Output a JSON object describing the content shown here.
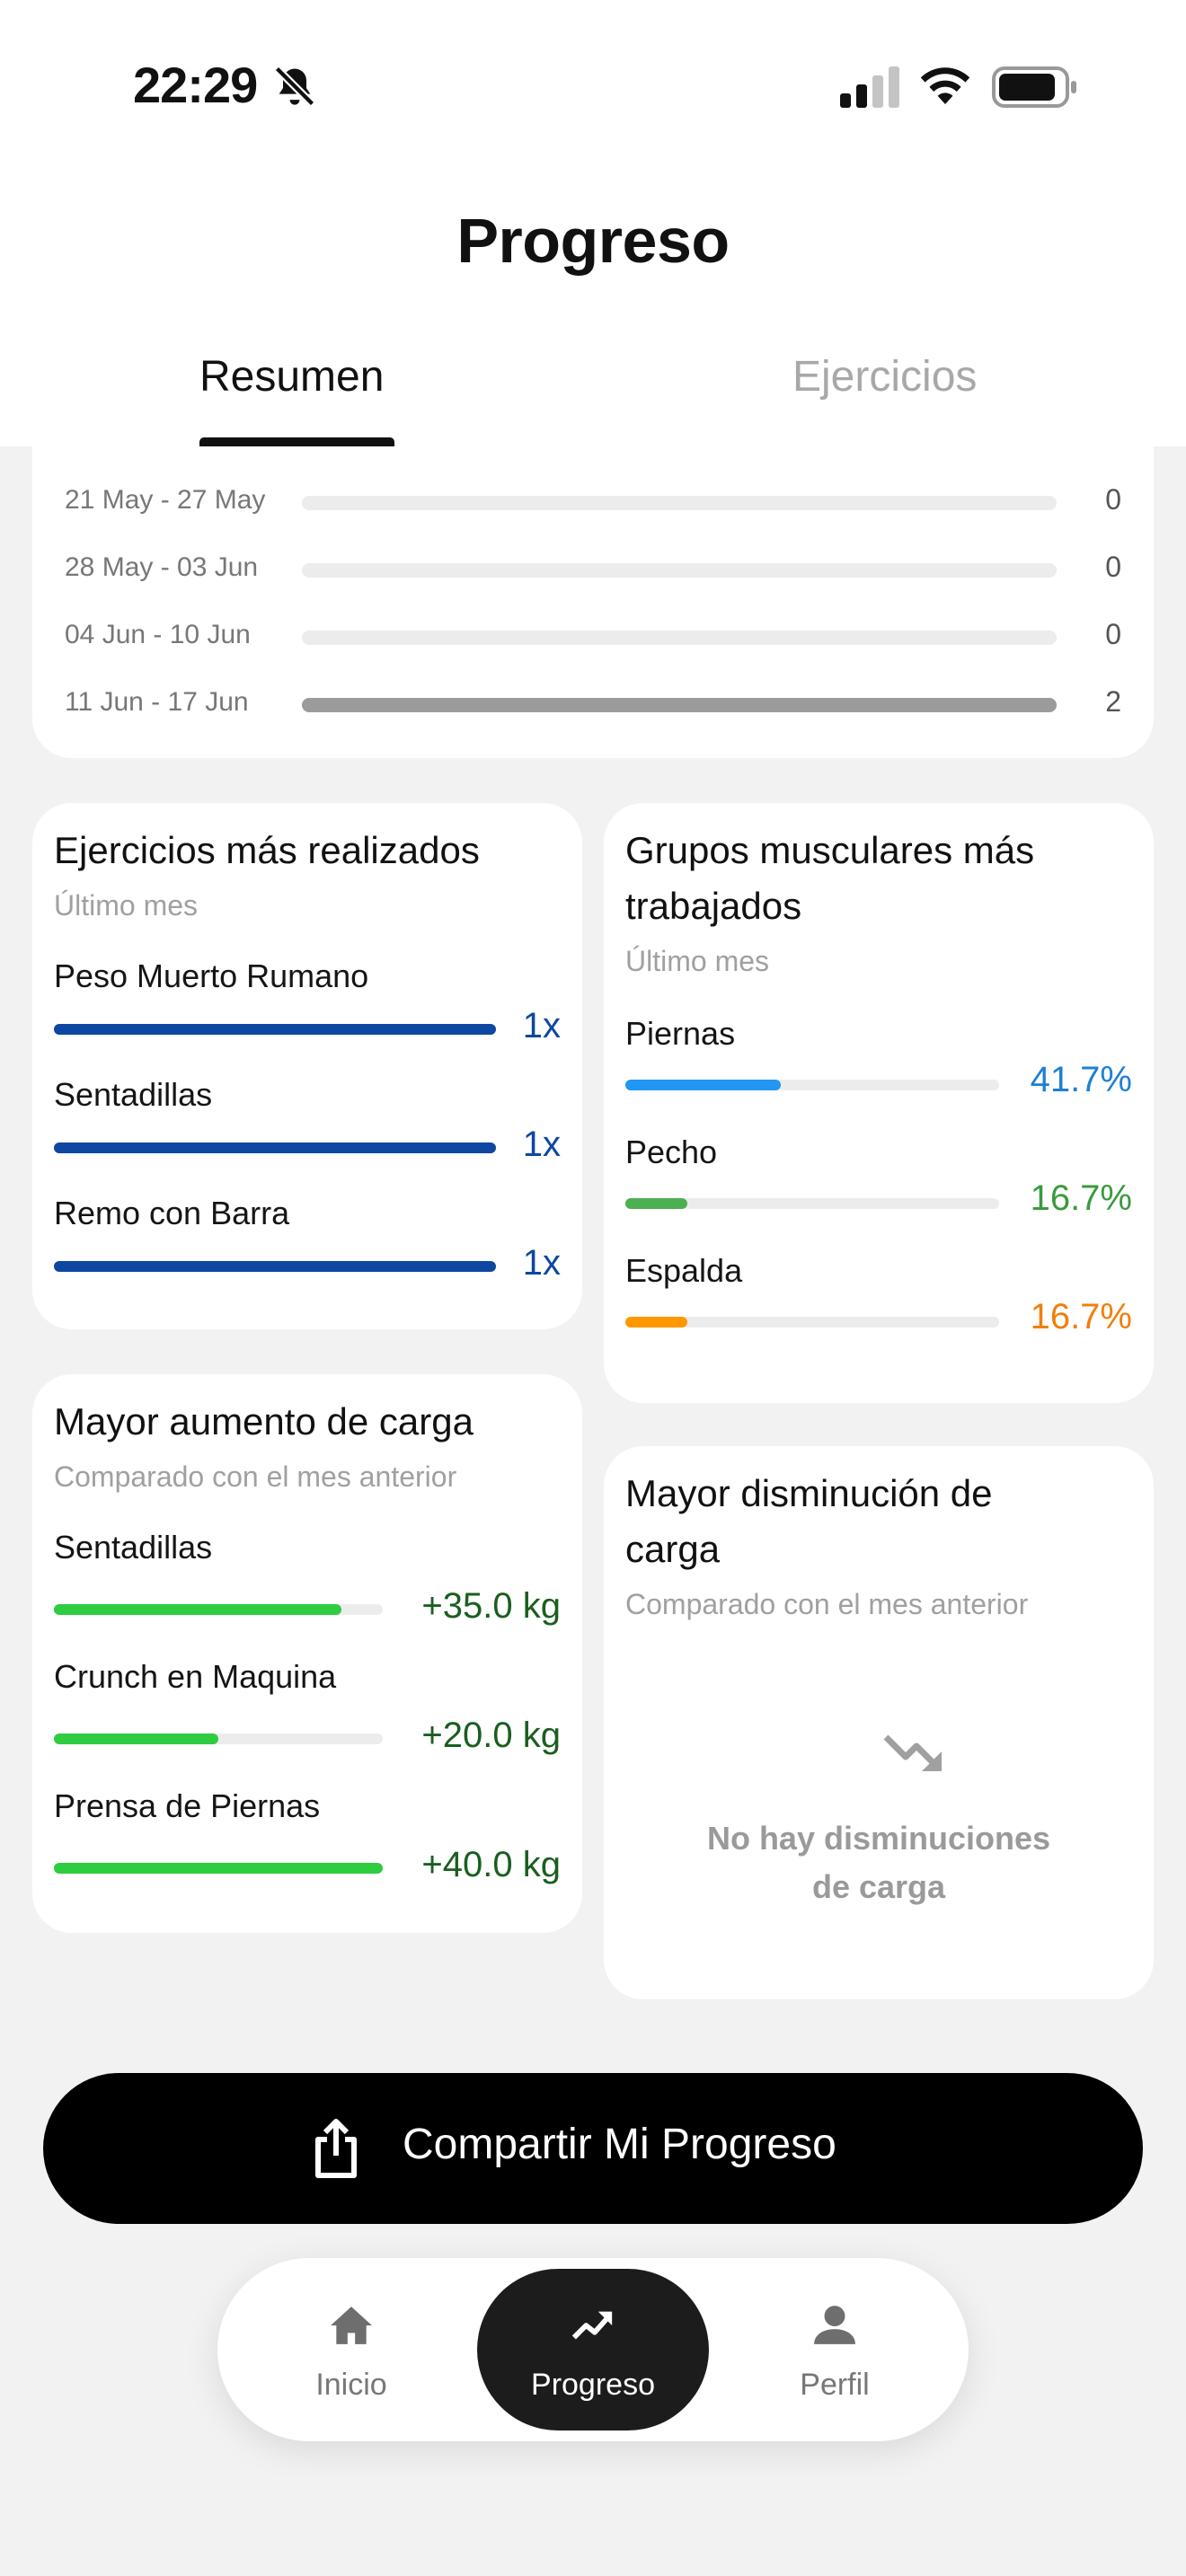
{
  "status_bar": {
    "time": "22:29"
  },
  "header": {
    "title": "Progreso",
    "tabs": [
      {
        "label": "Resumen",
        "active": true
      },
      {
        "label": "Ejercicios",
        "active": false
      }
    ]
  },
  "weekly_summary": {
    "rows": [
      {
        "label": "21 May - 27 May",
        "count": "0",
        "fraction": 0
      },
      {
        "label": "28 May - 03 Jun",
        "count": "0",
        "fraction": 0
      },
      {
        "label": "04 Jun - 10 Jun",
        "count": "0",
        "fraction": 0
      },
      {
        "label": "11 Jun - 17 Jun",
        "count": "2",
        "fraction": 1
      }
    ]
  },
  "top_exercises": {
    "title": "Ejercicios más realizados",
    "subtitle": "Último mes",
    "color": "#0d47a1",
    "items": [
      {
        "name": "Peso Muerto Rumano",
        "value": "1x",
        "fraction": 1
      },
      {
        "name": "Sentadillas",
        "value": "1x",
        "fraction": 1
      },
      {
        "name": "Remo con Barra",
        "value": "1x",
        "fraction": 1
      }
    ]
  },
  "muscle_groups": {
    "title_line1": "Grupos musculares más",
    "title_line2": "trabajados",
    "subtitle": "Último mes",
    "items": [
      {
        "name": "Piernas",
        "value": "41.7%",
        "fraction": 0.417,
        "color": "#2196f3",
        "text_color": "#1e7fd6"
      },
      {
        "name": "Pecho",
        "value": "16.7%",
        "fraction": 0.167,
        "color": "#4caf50",
        "text_color": "#3a9a3e"
      },
      {
        "name": "Espalda",
        "value": "16.7%",
        "fraction": 0.167,
        "color": "#ff9800",
        "text_color": "#f07f0c"
      }
    ]
  },
  "load_increase": {
    "title": "Mayor aumento de carga",
    "subtitle": "Comparado con el mes anterior",
    "color": "#2ecc40",
    "text_color": "#1b5e20",
    "items": [
      {
        "name": "Sentadillas",
        "value": "+35.0 kg",
        "fraction": 0.875
      },
      {
        "name": "Crunch en Maquina",
        "value": "+20.0 kg",
        "fraction": 0.5
      },
      {
        "name": "Prensa de Piernas",
        "value": "+40.0 kg",
        "fraction": 1
      }
    ]
  },
  "load_decrease": {
    "title_line1": "Mayor disminución de",
    "title_line2": "carga",
    "subtitle": "Comparado con el mes anterior",
    "icon": "trending-down-icon",
    "empty_line1": "No hay disminuciones",
    "empty_line2": "de carga"
  },
  "share_button": {
    "label": "Compartir Mi Progreso",
    "icon": "share-icon"
  },
  "bottom_nav": {
    "items": [
      {
        "label": "Inicio",
        "icon": "home-icon",
        "active": false
      },
      {
        "label": "Progreso",
        "icon": "trending-up-icon",
        "active": true
      },
      {
        "label": "Perfil",
        "icon": "person-icon",
        "active": false
      }
    ]
  }
}
